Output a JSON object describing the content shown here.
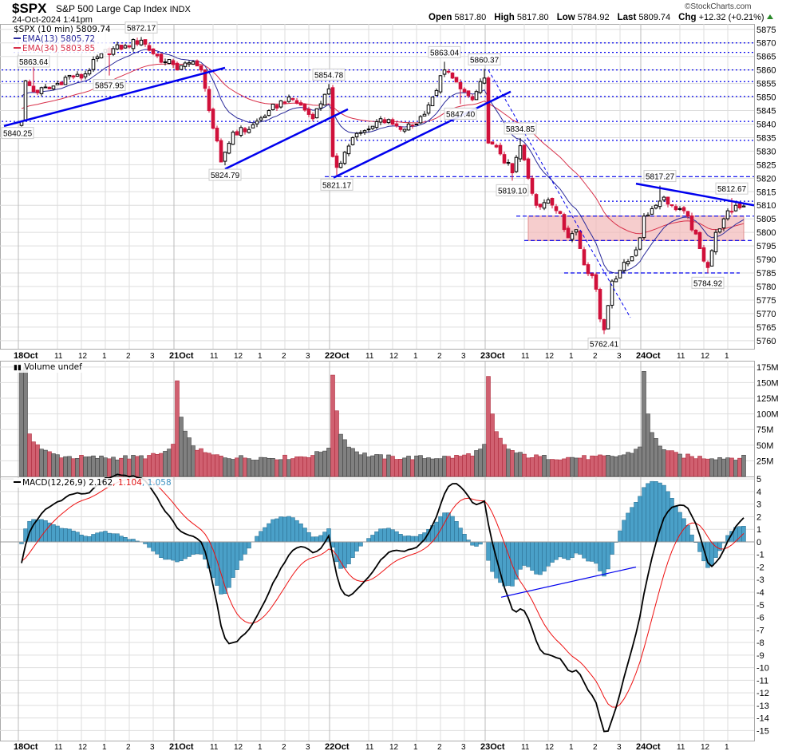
{
  "header": {
    "symbol": "$SPX",
    "name": "S&P 500 Large Cap Index",
    "exchange": "INDX",
    "datetime": "24-Oct-2024 1:41pm",
    "brand": "©StockCharts.com",
    "open_label": "Open",
    "open": "5817.80",
    "high_label": "High",
    "high": "5817.80",
    "low_label": "Low",
    "low": "5784.92",
    "last_label": "Last",
    "last": "5809.74",
    "chg_label": "Chg",
    "chg": "+12.32 (+0.21%)"
  },
  "legend": {
    "price": "$SPX (10 min) 5809.74",
    "ema13": "EMA(13) 5805.72",
    "ema34": "EMA(34) 5803.85",
    "volume": "Volume undef",
    "macd_label": "MACD(12,26,9) 2.162",
    "macd_signal": ", 1.104",
    "macd_hist": ", 1.058"
  },
  "colors": {
    "up": "#000000",
    "down": "#d0103a",
    "ema13": "#2a2a9a",
    "ema34": "#d8304a",
    "level": "#0000ee",
    "zone": "#f2b8b8",
    "vol_up": "#808080",
    "vol_down": "#d06070",
    "macd": "#000000",
    "signal": "#ee1010",
    "hist": "#4aa0c8",
    "grid": "#dddddd"
  },
  "chart_data": {
    "type": "candlestick",
    "interval": "10 min",
    "days": [
      "18Oct",
      "21Oct",
      "22Oct",
      "23Oct",
      "24Oct"
    ],
    "bars_per_day": 39,
    "bars_total": 182,
    "hour_ticks": [
      {
        "bar": 9,
        "label": "11"
      },
      {
        "bar": 15,
        "label": "12"
      },
      {
        "bar": 21,
        "label": "1"
      },
      {
        "bar": 27,
        "label": "2"
      },
      {
        "bar": 33,
        "label": "3"
      }
    ],
    "close_keypoints": [
      [
        0,
        5841
      ],
      [
        1,
        5856
      ],
      [
        3,
        5852
      ],
      [
        7,
        5853
      ],
      [
        12,
        5858
      ],
      [
        15,
        5857
      ],
      [
        20,
        5866
      ],
      [
        26,
        5869
      ],
      [
        30,
        5871
      ],
      [
        33,
        5866
      ],
      [
        36,
        5863
      ],
      [
        38,
        5862
      ],
      [
        39,
        5860
      ],
      [
        43,
        5863
      ],
      [
        45,
        5860
      ],
      [
        47,
        5845
      ],
      [
        50,
        5826
      ],
      [
        53,
        5837
      ],
      [
        57,
        5838
      ],
      [
        62,
        5845
      ],
      [
        67,
        5850
      ],
      [
        70,
        5847
      ],
      [
        73,
        5842
      ],
      [
        76,
        5851
      ],
      [
        77,
        5853
      ],
      [
        78,
        5828
      ],
      [
        79,
        5824
      ],
      [
        83,
        5835
      ],
      [
        87,
        5838
      ],
      [
        90,
        5842
      ],
      [
        95,
        5838
      ],
      [
        99,
        5840
      ],
      [
        103,
        5850
      ],
      [
        106,
        5860
      ],
      [
        108,
        5857
      ],
      [
        110,
        5853
      ],
      [
        113,
        5849
      ],
      [
        116,
        5857
      ],
      [
        117,
        5833
      ],
      [
        120,
        5829
      ],
      [
        123,
        5822
      ],
      [
        125,
        5832
      ],
      [
        127,
        5820
      ],
      [
        129,
        5810
      ],
      [
        132,
        5812
      ],
      [
        135,
        5807
      ],
      [
        137,
        5798
      ],
      [
        139,
        5801
      ],
      [
        141,
        5788
      ],
      [
        143,
        5784
      ],
      [
        144,
        5779
      ],
      [
        145,
        5768
      ],
      [
        146,
        5764
      ],
      [
        148,
        5782
      ],
      [
        150,
        5786
      ],
      [
        153,
        5791
      ],
      [
        155,
        5798
      ],
      [
        156,
        5806
      ],
      [
        159,
        5810
      ],
      [
        161,
        5813
      ],
      [
        163,
        5810
      ],
      [
        166,
        5808
      ],
      [
        167,
        5806
      ],
      [
        170,
        5794
      ],
      [
        172,
        5787
      ],
      [
        174,
        5800
      ],
      [
        176,
        5805
      ],
      [
        179,
        5810
      ],
      [
        181,
        5809.74
      ]
    ],
    "price_axis": {
      "min": 5757,
      "max": 5877,
      "ticks": [
        5760,
        5765,
        5770,
        5775,
        5780,
        5785,
        5790,
        5795,
        5800,
        5805,
        5810,
        5815,
        5820,
        5825,
        5830,
        5835,
        5840,
        5845,
        5850,
        5855,
        5860,
        5865,
        5870,
        5875
      ]
    },
    "callouts": [
      {
        "bar": -1,
        "price": 5840.25,
        "text": "5840.25",
        "pos": "below",
        "kind": "low"
      },
      {
        "bar": 3,
        "price": 5863.64,
        "text": "5863.64",
        "pos": "above",
        "kind": "high"
      },
      {
        "bar": 22,
        "price": 5857.95,
        "text": "5857.95",
        "pos": "below",
        "kind": "low"
      },
      {
        "bar": 30,
        "price": 5872.17,
        "text": "5872.17",
        "pos": "above",
        "kind": "high"
      },
      {
        "bar": 51,
        "price": 5824.79,
        "text": "5824.79",
        "pos": "below",
        "kind": "low"
      },
      {
        "bar": 77,
        "price": 5854.78,
        "text": "5854.78",
        "pos": "above",
        "kind": "high"
      },
      {
        "bar": 79,
        "price": 5821.17,
        "text": "5821.17",
        "pos": "below",
        "kind": "low"
      },
      {
        "bar": 106,
        "price": 5863.04,
        "text": "5863.04",
        "pos": "above",
        "kind": "high"
      },
      {
        "bar": 110,
        "price": 5847.4,
        "text": "5847.40",
        "pos": "below",
        "kind": "low"
      },
      {
        "bar": 116,
        "price": 5860.37,
        "text": "5860.37",
        "pos": "above",
        "kind": "high"
      },
      {
        "bar": 125,
        "price": 5834.85,
        "text": "5834.85",
        "pos": "above",
        "kind": "high"
      },
      {
        "bar": 123,
        "price": 5819.1,
        "text": "5819.10",
        "pos": "below",
        "kind": "low"
      },
      {
        "bar": 146,
        "price": 5762.41,
        "text": "5762.41",
        "pos": "below",
        "kind": "low"
      },
      {
        "bar": 160,
        "price": 5817.27,
        "text": "5817.27",
        "pos": "above",
        "kind": "high"
      },
      {
        "bar": 178,
        "price": 5812.67,
        "text": "5812.67",
        "pos": "above",
        "kind": "high"
      },
      {
        "bar": 172,
        "price": 5784.92,
        "text": "5784.92",
        "pos": "below",
        "kind": "low"
      }
    ],
    "levels": [
      {
        "price": 5870,
        "from": -2,
        "to": 184
      },
      {
        "price": 5866.5,
        "from": -2,
        "to": 184
      },
      {
        "price": 5860,
        "from": -5,
        "to": 184
      },
      {
        "price": 5855.7,
        "from": -5,
        "to": 184
      },
      {
        "price": 5850.2,
        "from": -5,
        "to": 184
      },
      {
        "price": 5841,
        "from": -5,
        "to": 184
      },
      {
        "price": 5834,
        "from": 78,
        "to": 184
      },
      {
        "price": 5820.6,
        "from": 76,
        "to": 184,
        "dash": "dashed"
      },
      {
        "price": 5811.5,
        "from": 145,
        "to": 184
      },
      {
        "price": 5806,
        "from": 124,
        "to": 184,
        "dash": "dashed"
      },
      {
        "price": 5797,
        "from": 126,
        "to": 184,
        "dash": "dashed"
      },
      {
        "price": 5785,
        "from": 136,
        "to": 180,
        "dash": "dashed"
      }
    ],
    "zone": {
      "from_price": 5797,
      "to_price": 5806,
      "from": 127,
      "to": 181
    },
    "trendlines": [
      {
        "b1": -4.4,
        "p1": 5839.3,
        "b2": 51,
        "p2": 5860.8,
        "width": 2.5
      },
      {
        "b1": 51,
        "p1": 5823.4,
        "b2": 81.8,
        "p2": 5845.5,
        "width": 2.5
      },
      {
        "b1": 78.2,
        "p1": 5820.2,
        "b2": 122.6,
        "p2": 5852,
        "width": 2.5
      },
      {
        "b1": 117,
        "p1": 5860,
        "b2": 152.6,
        "p2": 5768.5,
        "width": 1,
        "dash": true
      },
      {
        "b1": 154,
        "p1": 5818,
        "b2": 183.6,
        "p2": 5810,
        "width": 2.5
      }
    ],
    "volume": {
      "axis_max": 185,
      "ticks": [
        25,
        50,
        75,
        100,
        125,
        150,
        175
      ],
      "tick_labels": [
        "25M",
        "50M",
        "75M",
        "100M",
        "125M",
        "150M",
        "175M"
      ],
      "day_open": [
        [
          170,
          175
        ],
        [
          153,
          95
        ],
        [
          162,
          105
        ],
        [
          160,
          100
        ],
        [
          168,
          100
        ]
      ]
    },
    "macd": {
      "fast": 12,
      "slow": 26,
      "signal": 9,
      "axis": [
        -15.8,
        5.2
      ],
      "ticks": [
        5,
        4,
        3,
        2,
        1,
        0,
        -1,
        -2,
        -3,
        -4,
        -5,
        -6,
        -7,
        -8,
        -9,
        -10,
        -11,
        -12,
        -13,
        -14,
        -15
      ],
      "trendline": {
        "b1": 120.2,
        "v1": -4.4,
        "b2": 154,
        "v2": -2.0
      }
    }
  }
}
